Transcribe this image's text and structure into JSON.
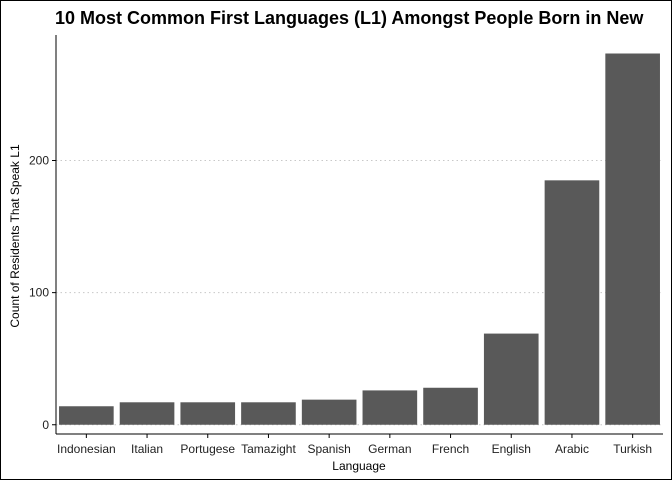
{
  "chart_data": {
    "type": "bar",
    "title": "10 Most Common First Languages (L1) Amongst People Born in New",
    "xlabel": "Language",
    "ylabel": "Count of Residents That Speak L1",
    "categories": [
      "Indonesian",
      "Italian",
      "Portugese",
      "Tamazight",
      "Spanish",
      "German",
      "French",
      "English",
      "Arabic",
      "Turkish"
    ],
    "values": [
      14,
      17,
      17,
      17,
      19,
      26,
      28,
      69,
      185,
      281
    ],
    "ylim": [
      -7,
      295
    ],
    "yticks": [
      0,
      100,
      200
    ],
    "grid": "horizontal dotted",
    "bar_color": "#595959"
  }
}
